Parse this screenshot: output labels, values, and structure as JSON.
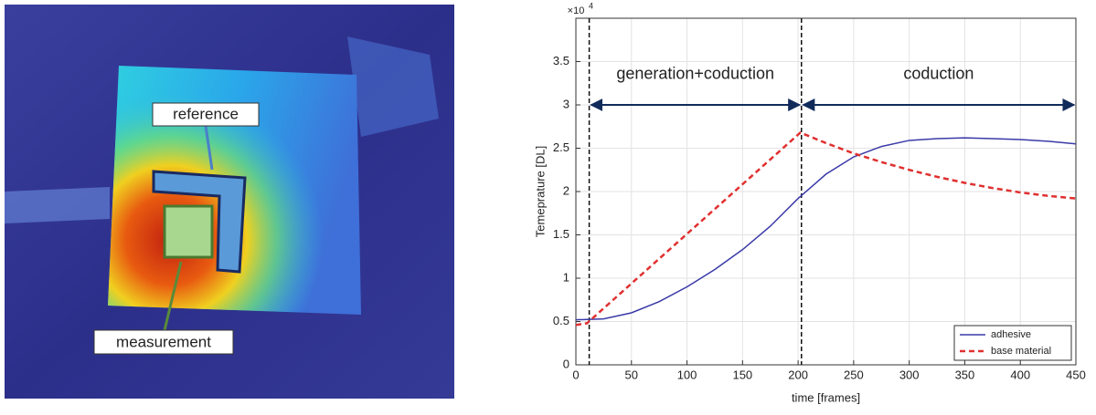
{
  "image": {
    "labels": [
      "reference",
      "measurement"
    ]
  },
  "chart_data": {
    "type": "line",
    "xlabel": "time [frames]",
    "ylabel": "Temeprature [DL]",
    "y_multiplier": "×10",
    "y_multiplier_exponent": "4",
    "xlim": [
      0,
      450
    ],
    "ylim": [
      0,
      4
    ],
    "xticks": [
      0,
      50,
      100,
      150,
      200,
      250,
      300,
      350,
      400,
      450
    ],
    "yticks": [
      0,
      0.5,
      1,
      1.5,
      2,
      2.5,
      3,
      3.5
    ],
    "grid": true,
    "legend": "lower right",
    "series": [
      {
        "name": "adhesive",
        "color": "#3a3aa8",
        "dash": "solid",
        "x": [
          0,
          25,
          50,
          75,
          100,
          125,
          150,
          175,
          200,
          225,
          250,
          275,
          300,
          325,
          350,
          375,
          400,
          425,
          450
        ],
        "values": [
          0.52,
          0.53,
          0.6,
          0.73,
          0.9,
          1.1,
          1.33,
          1.6,
          1.92,
          2.2,
          2.4,
          2.52,
          2.59,
          2.61,
          2.62,
          2.61,
          2.6,
          2.58,
          2.55
        ]
      },
      {
        "name": "base material",
        "color": "#e03030",
        "dash": "dashed",
        "x": [
          0,
          10,
          202,
          225,
          250,
          275,
          300,
          325,
          350,
          375,
          400,
          425,
          450
        ],
        "values": [
          0.46,
          0.48,
          2.68,
          2.56,
          2.44,
          2.34,
          2.25,
          2.17,
          2.1,
          2.04,
          1.99,
          1.95,
          1.92
        ]
      }
    ],
    "vlines": [
      12,
      203
    ],
    "annotations": [
      {
        "text": "generation+coduction",
        "x": [
          12,
          203
        ],
        "y": 3
      },
      {
        "text": "coduction",
        "x": [
          203,
          450
        ],
        "y": 3
      }
    ]
  }
}
